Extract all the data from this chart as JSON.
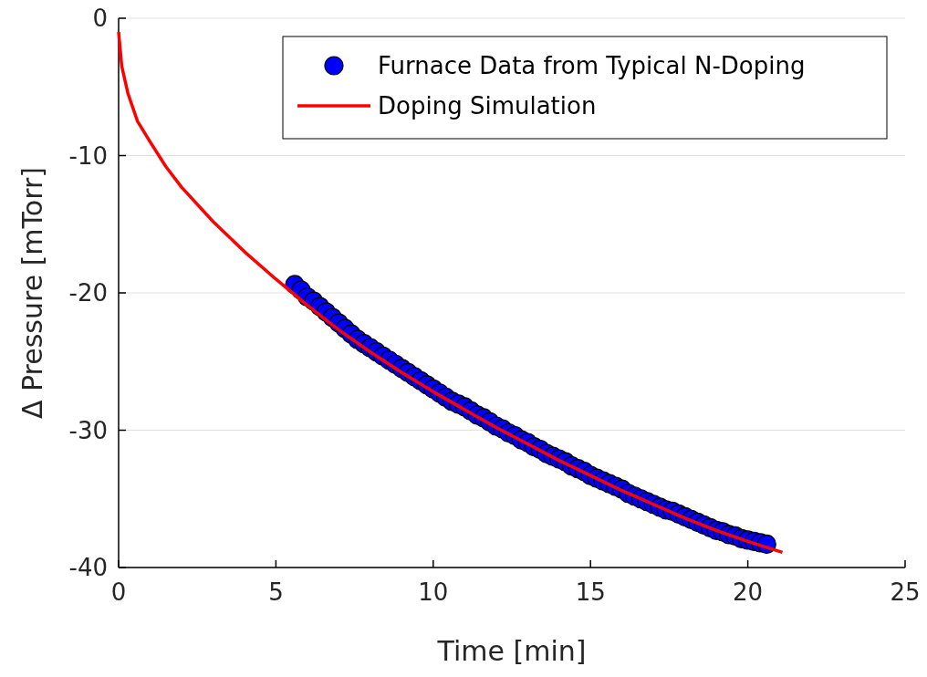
{
  "chart_data": {
    "type": "scatter",
    "xlabel": "Time [min]",
    "ylabel": "Δ Pressure [mTorr]",
    "xlim": [
      0,
      25
    ],
    "xticks": [
      0,
      5,
      10,
      15,
      20,
      25
    ],
    "ylim": [
      -40,
      0
    ],
    "yticks": [
      -40,
      -30,
      -20,
      -10,
      0
    ],
    "grid": "y",
    "legend": "top right",
    "series": [
      {
        "name": "Furnace Data from Typical N-Doping",
        "marker": "circle",
        "color": "#0000ff",
        "x": [
          5.6,
          5.8,
          6.0,
          6.2,
          6.4,
          6.6,
          6.8,
          7.0,
          7.2,
          7.4,
          7.6,
          7.8,
          8.0,
          8.2,
          8.4,
          8.6,
          8.8,
          9.0,
          9.2,
          9.4,
          9.6,
          9.8,
          10.0,
          10.2,
          10.4,
          10.6,
          10.8,
          11.0,
          11.2,
          11.4,
          11.6,
          11.8,
          12.0,
          12.2,
          12.4,
          12.6,
          12.8,
          13.0,
          13.2,
          13.4,
          13.6,
          13.8,
          14.0,
          14.2,
          14.4,
          14.6,
          14.8,
          15.0,
          15.2,
          15.4,
          15.6,
          15.8,
          16.0,
          16.2,
          16.4,
          16.6,
          16.8,
          17.0,
          17.2,
          17.4,
          17.6,
          17.8,
          18.0,
          18.2,
          18.4,
          18.6,
          18.8,
          19.0,
          19.2,
          19.4,
          19.6,
          19.8,
          20.0,
          20.2,
          20.4,
          20.6
        ],
        "values": [
          -19.4,
          -19.8,
          -20.3,
          -20.6,
          -21.0,
          -21.4,
          -21.8,
          -22.2,
          -22.6,
          -23.0,
          -23.4,
          -23.7,
          -24.0,
          -24.3,
          -24.6,
          -24.9,
          -25.2,
          -25.5,
          -25.8,
          -26.1,
          -26.4,
          -26.7,
          -27.0,
          -27.3,
          -27.6,
          -27.9,
          -28.1,
          -28.3,
          -28.6,
          -28.9,
          -29.1,
          -29.4,
          -29.7,
          -29.9,
          -30.2,
          -30.4,
          -30.7,
          -30.9,
          -31.2,
          -31.4,
          -31.7,
          -31.9,
          -32.1,
          -32.3,
          -32.6,
          -32.8,
          -33.0,
          -33.3,
          -33.5,
          -33.7,
          -33.9,
          -34.1,
          -34.3,
          -34.6,
          -34.8,
          -35.0,
          -35.2,
          -35.4,
          -35.6,
          -35.8,
          -35.9,
          -36.1,
          -36.3,
          -36.5,
          -36.7,
          -36.9,
          -37.1,
          -37.3,
          -37.4,
          -37.6,
          -37.7,
          -37.9,
          -38.0,
          -38.1,
          -38.2,
          -38.3
        ]
      },
      {
        "name": "Doping Simulation",
        "type": "line",
        "line_style": "solid",
        "color": "#ff0000",
        "x": [
          0,
          0.1,
          0.3,
          0.6,
          1,
          1.5,
          2,
          3,
          4,
          5,
          6,
          7,
          8,
          9,
          10,
          11,
          12,
          13,
          14,
          15,
          16,
          17,
          18,
          19,
          20,
          21.1
        ],
        "values": [
          -1,
          -3.5,
          -5.5,
          -7.5,
          -9,
          -10.8,
          -12.3,
          -14.8,
          -17,
          -19,
          -20.9,
          -22.7,
          -24.3,
          -25.8,
          -27.2,
          -28.5,
          -29.8,
          -31,
          -32.2,
          -33.3,
          -34.4,
          -35.4,
          -36.4,
          -37.3,
          -38.1,
          -38.9
        ]
      }
    ]
  }
}
